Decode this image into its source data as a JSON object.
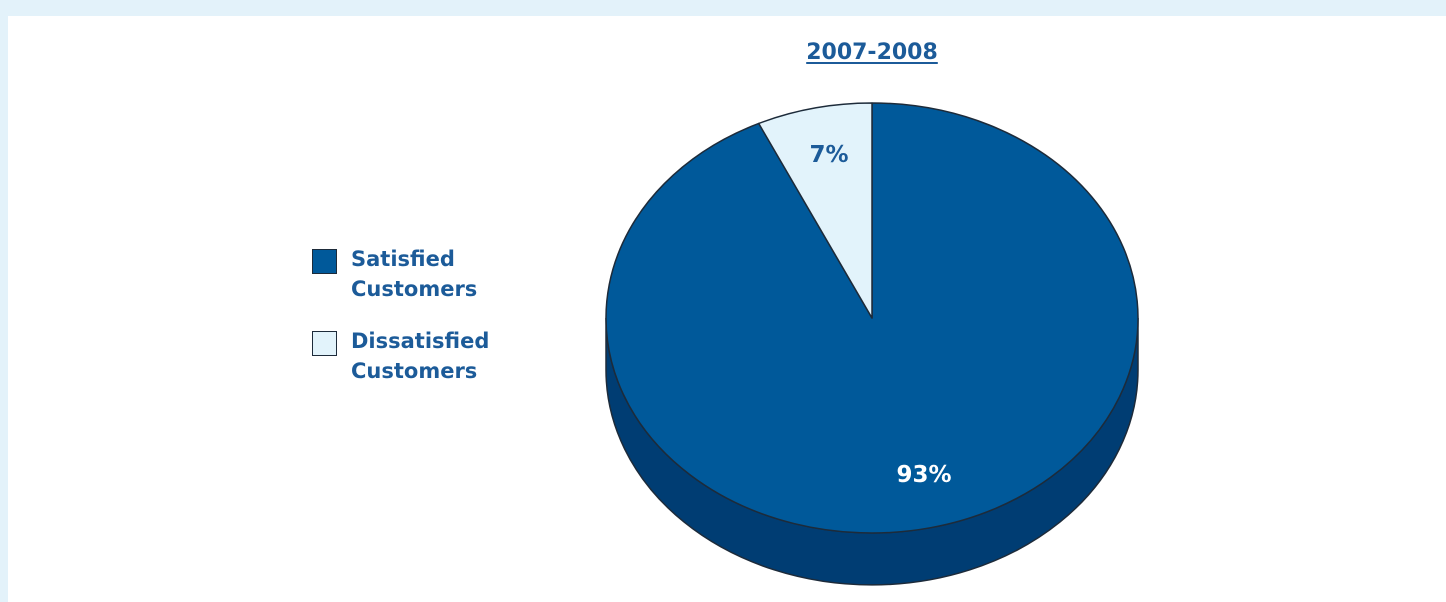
{
  "chart_data": {
    "type": "pie",
    "title": "2007-2008",
    "slices": [
      {
        "name": "Satisfied Customers",
        "value": 93,
        "label": "93%",
        "color": "#00599a"
      },
      {
        "name": "Dissatisfied Customers",
        "value": 7,
        "label": "7%",
        "color": "#e2f3fb"
      }
    ],
    "legend": [
      {
        "label": "Satisfied\nCustomers",
        "color": "#00599a"
      },
      {
        "label": "Dissatisfied\nCustomers",
        "color": "#e2f3fb"
      }
    ],
    "legend_position": "left",
    "style": "3d"
  },
  "colors": {
    "background": "#e3f2fa",
    "title": "#1c5b99",
    "side": "#003d73",
    "outline": "#1d2b3a"
  }
}
